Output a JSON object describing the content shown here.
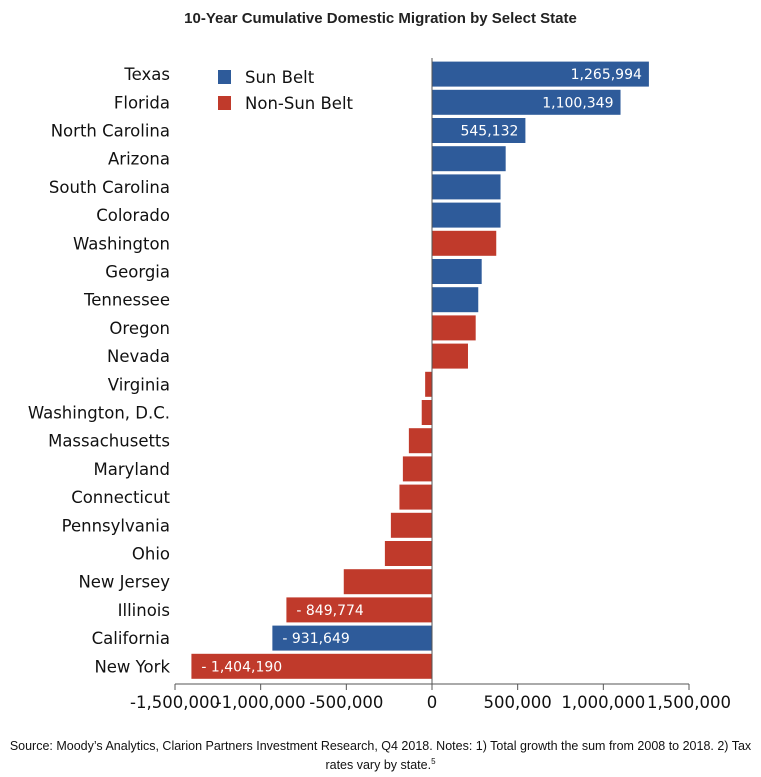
{
  "chart_data": {
    "type": "bar",
    "orientation": "horizontal",
    "title": "10-Year Cumulative Domestic Migration by Select State",
    "xlim": [
      -1500000,
      1500000
    ],
    "x_ticks": [
      -1500000,
      -1000000,
      -500000,
      0,
      500000,
      1000000,
      1500000
    ],
    "x_tick_labels": [
      "-1,500,000",
      "-1,000,000",
      "-500,000",
      "0",
      "500,000",
      "1,000,000",
      "1,500,000"
    ],
    "legend": [
      {
        "name": "Sun Belt",
        "color": "#2e5b9a"
      },
      {
        "name": "Non-Sun Belt",
        "color": "#c03a2b"
      }
    ],
    "legend_position": "top-left of plot",
    "grid": false,
    "categories": [
      "Texas",
      "Florida",
      "North Carolina",
      "Arizona",
      "South Carolina",
      "Colorado",
      "Washington",
      "Georgia",
      "Tennessee",
      "Oregon",
      "Nevada",
      "Virginia",
      "Washington, D.C.",
      "Massachusetts",
      "Maryland",
      "Connecticut",
      "Pennsylvania",
      "Ohio",
      "New Jersey",
      "Illinois",
      "California",
      "New York"
    ],
    "values": [
      1265994,
      1100349,
      545132,
      430000,
      400000,
      400000,
      375000,
      290000,
      270000,
      255000,
      210000,
      -40000,
      -60000,
      -135000,
      -170000,
      -190000,
      -240000,
      -275000,
      -515000,
      -849774,
      -931649,
      -1404190
    ],
    "groups": [
      "Sun Belt",
      "Sun Belt",
      "Sun Belt",
      "Sun Belt",
      "Sun Belt",
      "Sun Belt",
      "Non-Sun Belt",
      "Sun Belt",
      "Sun Belt",
      "Non-Sun Belt",
      "Non-Sun Belt",
      "Non-Sun Belt",
      "Non-Sun Belt",
      "Non-Sun Belt",
      "Non-Sun Belt",
      "Non-Sun Belt",
      "Non-Sun Belt",
      "Non-Sun Belt",
      "Non-Sun Belt",
      "Non-Sun Belt",
      "Sun Belt",
      "Non-Sun Belt"
    ],
    "data_labels": [
      "1,265,994",
      "1,100,349",
      "545,132",
      "",
      "",
      "",
      "",
      "",
      "",
      "",
      "",
      "",
      "",
      "",
      "",
      "",
      "",
      "",
      "",
      "- 849,774",
      "- 931,649",
      "- 1,404,190"
    ]
  },
  "source": {
    "text": "Source: Moody’s Analytics, Clarion Partners Investment Research, Q4 2018. Notes: 1) Total growth the sum from 2008 to 2018. 2) Tax rates vary by state.",
    "superscript": "5"
  }
}
